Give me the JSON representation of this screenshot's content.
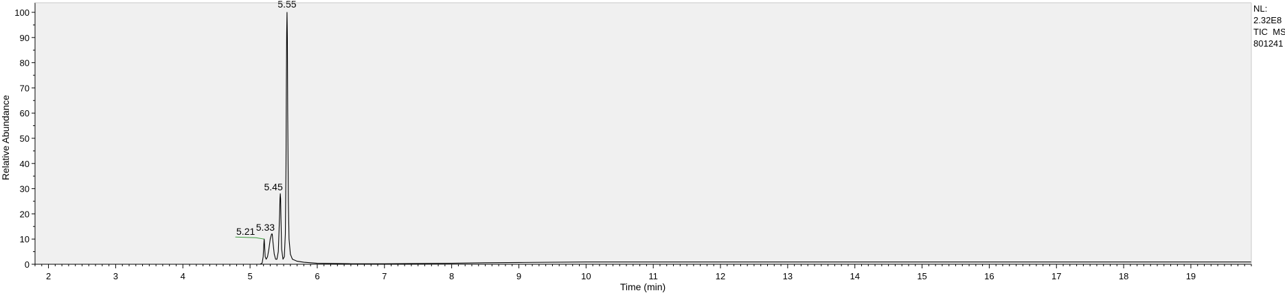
{
  "info": {
    "nl_label": "NL:",
    "nl_value": "2.32E8",
    "scan_filter": "TIC  MS",
    "sample": "801241"
  },
  "chart_data": {
    "type": "line",
    "title": "",
    "xlabel": "Time (min)",
    "ylabel": "Relative Abundance",
    "xlim": [
      1.8,
      19.9
    ],
    "ylim": [
      0,
      100
    ],
    "xticks": [
      2,
      3,
      4,
      5,
      6,
      7,
      8,
      9,
      10,
      11,
      12,
      13,
      14,
      15,
      16,
      17,
      18,
      19
    ],
    "yticks": [
      0,
      10,
      20,
      30,
      40,
      50,
      60,
      70,
      80,
      90,
      100
    ],
    "colors": {
      "trace": "#000000",
      "annotation_line": "#3a9a3a",
      "plot_bg": "#f0f0f0"
    },
    "series": [
      {
        "x": [
          1.8,
          5.15,
          5.18,
          5.195,
          5.205,
          5.21,
          5.215,
          5.225,
          5.24,
          5.26,
          5.28,
          5.3,
          5.32,
          5.33,
          5.34,
          5.36,
          5.38,
          5.4,
          5.42,
          5.44,
          5.445,
          5.45,
          5.455,
          5.46,
          5.47,
          5.49,
          5.51,
          5.525,
          5.535,
          5.54,
          5.545,
          5.55,
          5.555,
          5.56,
          5.57,
          5.58,
          5.6,
          5.63,
          5.7,
          5.8,
          6.0,
          6.5,
          7.0,
          8.0,
          8.5,
          9.0,
          10.0,
          11.0,
          12.0,
          13.0,
          14.0,
          15.0,
          16.0,
          17.0,
          18.0,
          19.0,
          19.9
        ],
        "y": [
          0,
          0,
          0.5,
          3,
          8,
          10,
          8,
          3,
          2,
          3,
          6,
          10,
          12,
          12,
          9,
          4,
          2,
          2,
          5,
          20,
          26,
          28,
          26,
          18,
          6,
          2,
          3,
          12,
          40,
          70,
          92,
          100,
          90,
          60,
          25,
          10,
          4,
          2,
          1.2,
          0.8,
          0.4,
          0.2,
          0.2,
          0.4,
          0.6,
          0.7,
          0.9,
          0.9,
          0.9,
          0.9,
          0.9,
          0.9,
          0.9,
          0.9,
          0.9,
          0.9,
          0.9
        ]
      }
    ],
    "peak_labels": [
      {
        "text": "5.21",
        "x": 5.21,
        "y": 10,
        "connector": true
      },
      {
        "text": "5.33",
        "x": 5.33,
        "y": 12,
        "connector": false
      },
      {
        "text": "5.45",
        "x": 5.45,
        "y": 28,
        "connector": false
      },
      {
        "text": "5.55",
        "x": 5.55,
        "y": 100,
        "connector": false
      }
    ]
  }
}
